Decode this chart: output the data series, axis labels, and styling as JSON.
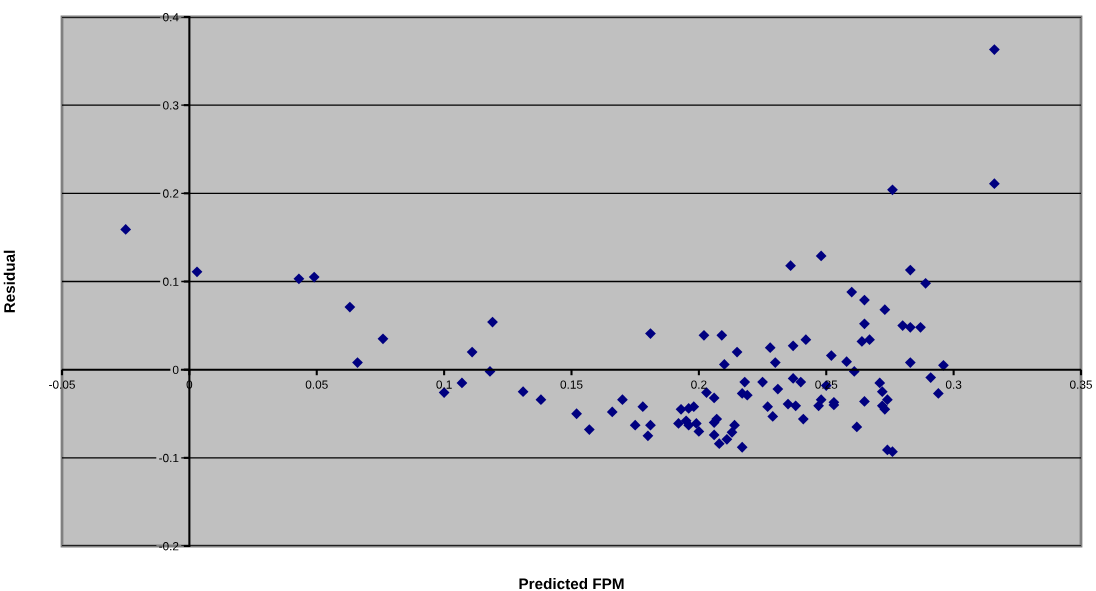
{
  "chart_data": {
    "type": "scatter",
    "xlabel": "Predicted FPM",
    "ylabel": "Residual",
    "xlim": [
      -0.05,
      0.35
    ],
    "ylim": [
      -0.2,
      0.4
    ],
    "xticks": [
      -0.05,
      0,
      0.05,
      {
        "value": 0.1,
        "label": "0.1"
      },
      0.15,
      {
        "value": 0.2,
        "label": "0.2"
      },
      0.25,
      {
        "value": 0.3,
        "label": "0.3"
      },
      0.35
    ],
    "yticks": [
      -0.2,
      -0.1,
      0,
      0.1,
      0.2,
      0.3,
      0.4
    ],
    "grid": "y",
    "marker": "diamond",
    "legend": false,
    "series": [
      {
        "color": "#000080",
        "x": [
          -0.025,
          0.003,
          0.043,
          0.049,
          0.063,
          0.066,
          0.076,
          0.1,
          0.107,
          0.111,
          0.119,
          0.118,
          0.131,
          0.138,
          0.152,
          0.157,
          0.166,
          0.17,
          0.175,
          0.178,
          0.18,
          0.181,
          0.181,
          0.193,
          0.196,
          0.198,
          0.192,
          0.195,
          0.196,
          0.199,
          0.2,
          0.202,
          0.209,
          0.21,
          0.203,
          0.206,
          0.206,
          0.207,
          0.206,
          0.208,
          0.211,
          0.213,
          0.214,
          0.217,
          0.215,
          0.218,
          0.217,
          0.219,
          0.225,
          0.227,
          0.229,
          0.228,
          0.23,
          0.237,
          0.231,
          0.235,
          0.237,
          0.238,
          0.236,
          0.248,
          0.283,
          0.289,
          0.26,
          0.265,
          0.273,
          0.265,
          0.28,
          0.283,
          0.287,
          0.242,
          0.264,
          0.267,
          0.252,
          0.258,
          0.261,
          0.283,
          0.296,
          0.24,
          0.25,
          0.241,
          0.247,
          0.248,
          0.253,
          0.253,
          0.265,
          0.262,
          0.271,
          0.272,
          0.274,
          0.272,
          0.273,
          0.274,
          0.276,
          0.291,
          0.294,
          0.316,
          0.316,
          0.276
        ],
        "values": [
          0.159,
          0.111,
          0.103,
          0.105,
          0.071,
          0.008,
          0.035,
          -0.026,
          -0.015,
          0.02,
          0.054,
          -0.002,
          -0.025,
          -0.034,
          -0.05,
          -0.068,
          -0.048,
          -0.034,
          -0.063,
          -0.042,
          -0.075,
          -0.063,
          0.041,
          -0.045,
          -0.044,
          -0.042,
          -0.061,
          -0.058,
          -0.063,
          -0.061,
          -0.07,
          0.039,
          0.039,
          0.006,
          -0.026,
          -0.032,
          -0.06,
          -0.056,
          -0.074,
          -0.084,
          -0.079,
          -0.071,
          -0.063,
          -0.088,
          0.02,
          -0.014,
          -0.027,
          -0.029,
          -0.014,
          -0.042,
          -0.053,
          0.025,
          0.008,
          0.027,
          -0.022,
          -0.039,
          -0.01,
          -0.041,
          0.118,
          0.129,
          0.113,
          0.098,
          0.088,
          0.079,
          0.068,
          0.052,
          0.05,
          0.048,
          0.048,
          0.034,
          0.032,
          0.034,
          0.016,
          0.009,
          -0.002,
          0.008,
          0.005,
          -0.014,
          -0.018,
          -0.056,
          -0.041,
          -0.034,
          -0.04,
          -0.037,
          -0.036,
          -0.065,
          -0.015,
          -0.025,
          -0.034,
          -0.041,
          -0.045,
          -0.091,
          -0.093,
          -0.009,
          -0.027,
          0.363,
          0.211,
          0.204
        ]
      }
    ]
  }
}
